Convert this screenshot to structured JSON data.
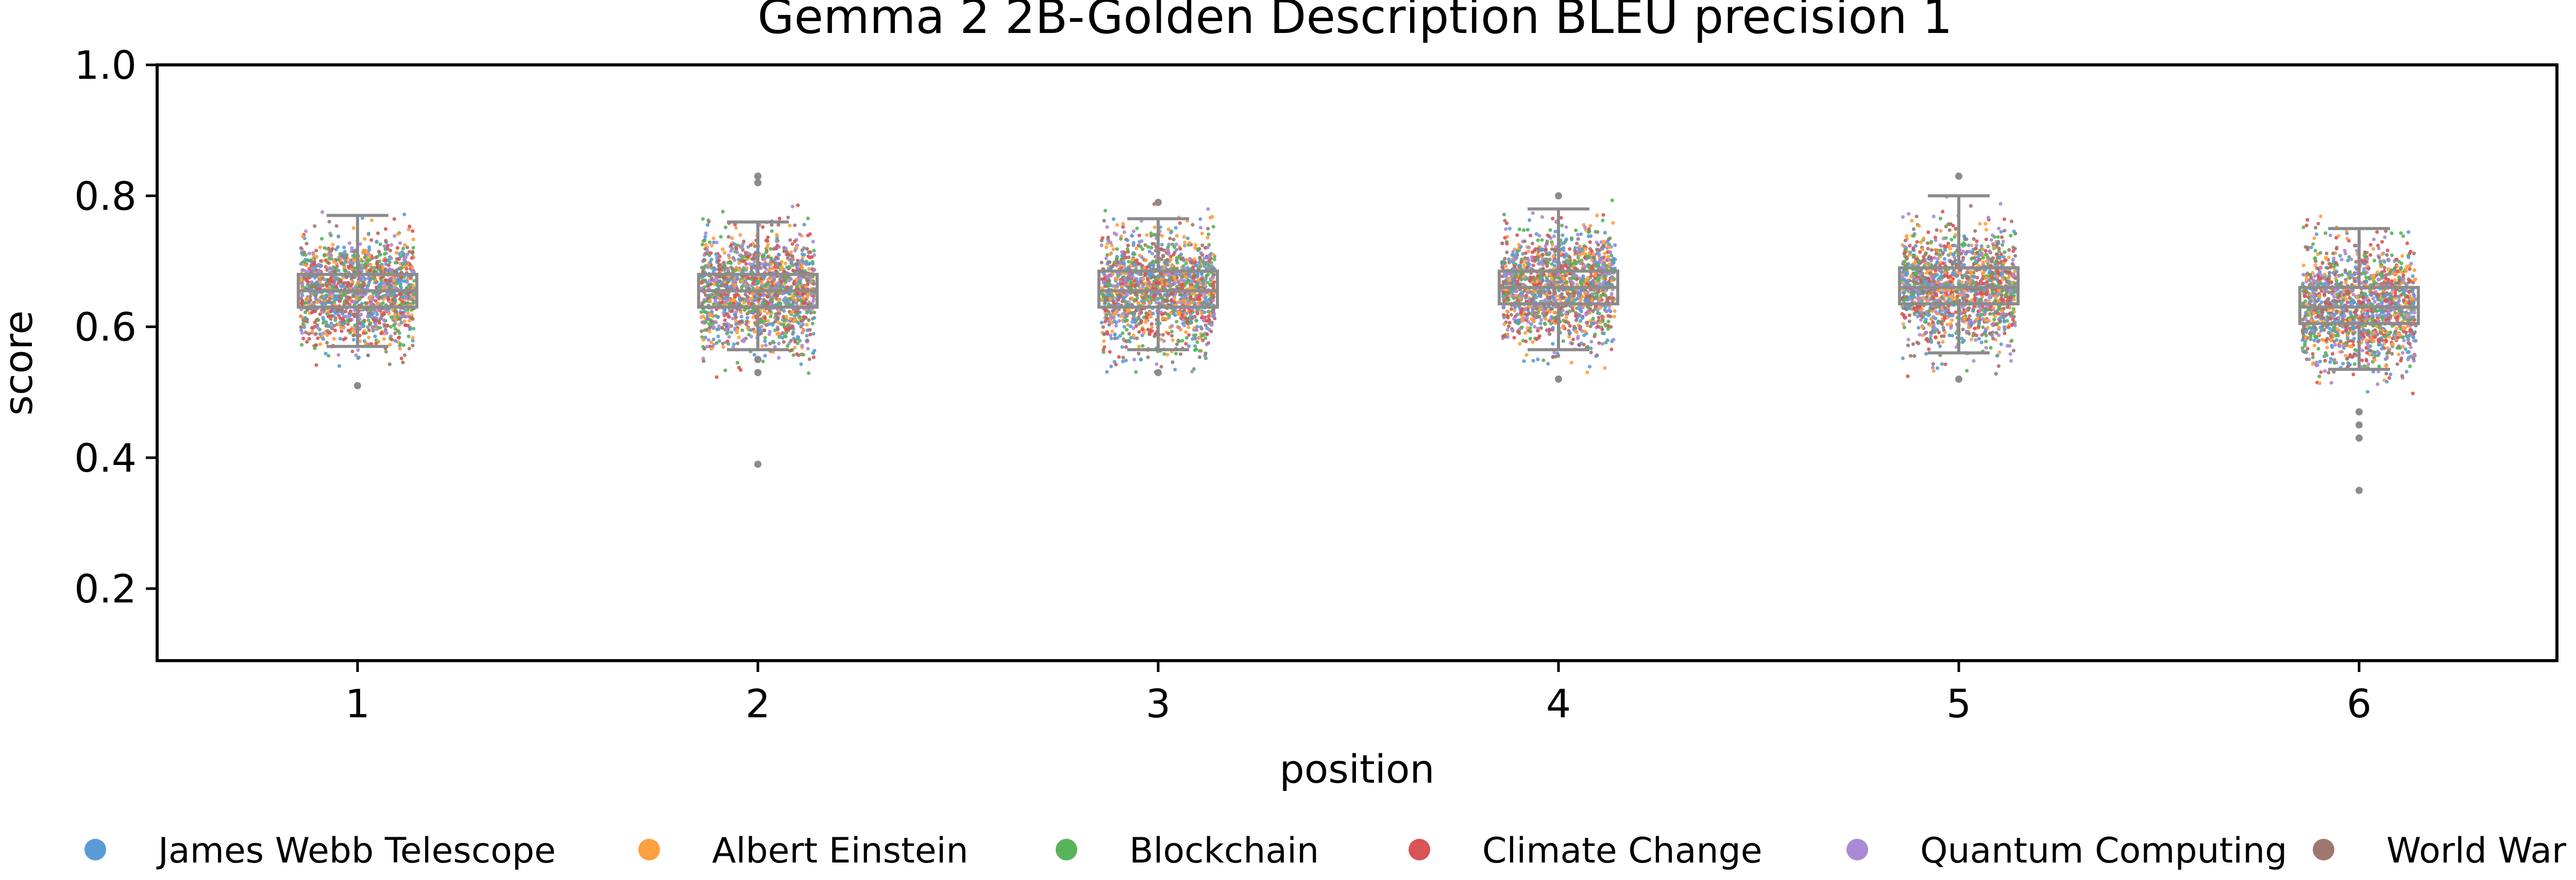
{
  "chart_data": {
    "type": "box+strip",
    "title": "Gemma 2 2B-Golden Description BLEU precision 1",
    "xlabel": "position",
    "ylabel": "score",
    "categories": [
      "1",
      "2",
      "3",
      "4",
      "5",
      "6"
    ],
    "ylim": [
      0.09,
      1.0
    ],
    "yticks": [
      "0.2",
      "0.4",
      "0.6",
      "0.8",
      "1.0"
    ],
    "grid": false,
    "legend_placement": "bottom",
    "series": [
      {
        "name": "James Webb Telescope",
        "color": "#5b9bd5"
      },
      {
        "name": "Albert Einstein",
        "color": "#ff9f40"
      },
      {
        "name": "Blockchain",
        "color": "#59b35a"
      },
      {
        "name": "Climate Change",
        "color": "#d95454"
      },
      {
        "name": "Quantum Computing",
        "color": "#a98ad6"
      },
      {
        "name": "World War II",
        "color": "#a0776e"
      }
    ],
    "boxes": [
      {
        "position": "1",
        "whislo": 0.57,
        "q1": 0.63,
        "median": 0.655,
        "q3": 0.68,
        "whishi": 0.77,
        "fliers": [
          0.51
        ]
      },
      {
        "position": "2",
        "whislo": 0.565,
        "q1": 0.63,
        "median": 0.655,
        "q3": 0.68,
        "whishi": 0.76,
        "fliers": [
          0.39,
          0.82,
          0.83,
          0.53,
          0.55
        ]
      },
      {
        "position": "3",
        "whislo": 0.565,
        "q1": 0.63,
        "median": 0.655,
        "q3": 0.685,
        "whishi": 0.765,
        "fliers": [
          0.53,
          0.79
        ]
      },
      {
        "position": "4",
        "whislo": 0.565,
        "q1": 0.635,
        "median": 0.66,
        "q3": 0.685,
        "whishi": 0.78,
        "fliers": [
          0.52,
          0.8
        ]
      },
      {
        "position": "5",
        "whislo": 0.56,
        "q1": 0.635,
        "median": 0.66,
        "q3": 0.69,
        "whishi": 0.8,
        "fliers": [
          0.52,
          0.83
        ]
      },
      {
        "position": "6",
        "whislo": 0.535,
        "q1": 0.605,
        "median": 0.63,
        "q3": 0.66,
        "whishi": 0.75,
        "fliers": [
          0.35,
          0.43,
          0.45,
          0.47
        ]
      }
    ],
    "point_spread": [
      {
        "position": "1",
        "center": 0.655,
        "sd": 0.04,
        "min": 0.52,
        "max": 0.78
      },
      {
        "position": "2",
        "center": 0.655,
        "sd": 0.042,
        "min": 0.52,
        "max": 0.8
      },
      {
        "position": "3",
        "center": 0.655,
        "sd": 0.042,
        "min": 0.53,
        "max": 0.79
      },
      {
        "position": "4",
        "center": 0.66,
        "sd": 0.042,
        "min": 0.53,
        "max": 0.8
      },
      {
        "position": "5",
        "center": 0.66,
        "sd": 0.042,
        "min": 0.52,
        "max": 0.82
      },
      {
        "position": "6",
        "center": 0.63,
        "sd": 0.045,
        "min": 0.45,
        "max": 0.77
      }
    ]
  }
}
